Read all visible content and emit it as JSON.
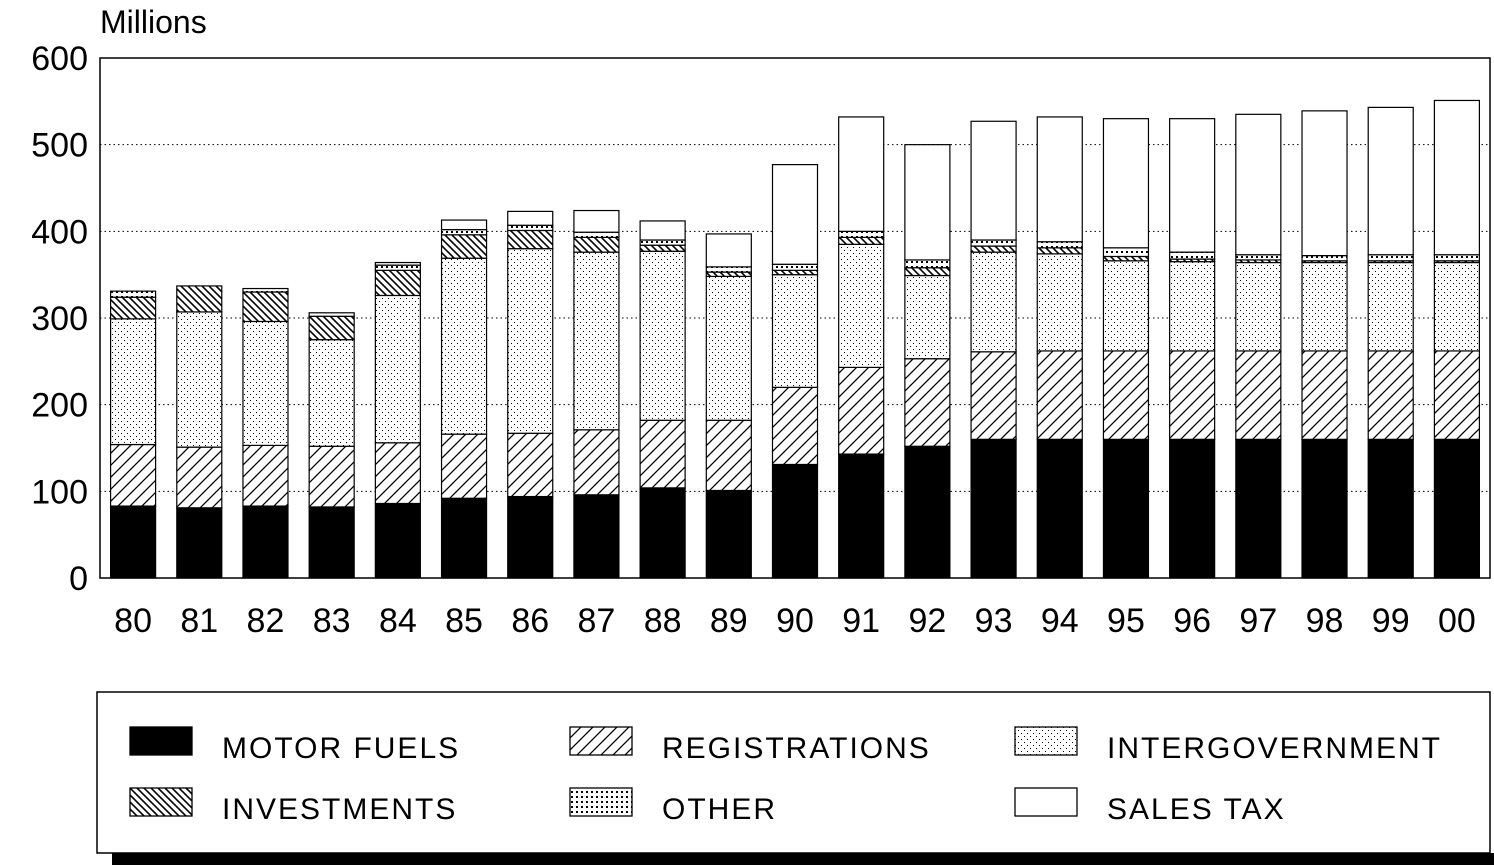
{
  "chart_data": {
    "type": "bar",
    "stacked": true,
    "ylabel": "Millions",
    "ylim": [
      0,
      600
    ],
    "yticks": [
      0,
      100,
      200,
      300,
      400,
      500,
      600
    ],
    "grid": "horizontal dotted",
    "legend_position": "bottom",
    "categories": [
      "80",
      "81",
      "82",
      "83",
      "84",
      "85",
      "86",
      "87",
      "88",
      "89",
      "90",
      "91",
      "92",
      "93",
      "94",
      "95",
      "96",
      "97",
      "98",
      "99",
      "00"
    ],
    "series": [
      {
        "name": "MOTOR FUELS",
        "values": [
          83,
          81,
          83,
          82,
          86,
          92,
          94,
          96,
          104,
          101,
          131,
          143,
          152,
          160,
          160,
          160,
          160,
          160,
          160,
          160,
          160
        ],
        "pattern": "solid-black"
      },
      {
        "name": "REGISTRATIONS",
        "values": [
          71,
          70,
          70,
          70,
          70,
          74,
          73,
          75,
          78,
          81,
          89,
          100,
          101,
          101,
          102,
          102,
          102,
          102,
          102,
          102,
          102
        ],
        "pattern": "diagonal"
      },
      {
        "name": "INTERGOVERNMENT",
        "values": [
          145,
          156,
          143,
          123,
          170,
          203,
          213,
          205,
          195,
          166,
          130,
          142,
          96,
          115,
          112,
          104,
          103,
          102,
          102,
          102,
          102
        ],
        "pattern": "light-dots"
      },
      {
        "name": "INVESTMENTS",
        "values": [
          25,
          30,
          34,
          27,
          29,
          27,
          21,
          17,
          7,
          5,
          5,
          8,
          9,
          7,
          7,
          5,
          3,
          3,
          2,
          2,
          2
        ],
        "pattern": "back-diagonal"
      },
      {
        "name": "OTHER",
        "values": [
          7,
          0,
          4,
          4,
          6,
          6,
          6,
          6,
          6,
          6,
          7,
          7,
          9,
          7,
          7,
          10,
          8,
          6,
          6,
          7,
          7
        ],
        "pattern": "dense-dots"
      },
      {
        "name": "SALES TAX",
        "values": [
          0,
          0,
          0,
          0,
          3,
          11,
          16,
          25,
          22,
          38,
          115,
          132,
          133,
          137,
          144,
          149,
          154,
          162,
          167,
          170,
          178
        ],
        "pattern": "white"
      }
    ]
  },
  "colors": {
    "ink": "#000000",
    "paper": "#ffffff"
  }
}
